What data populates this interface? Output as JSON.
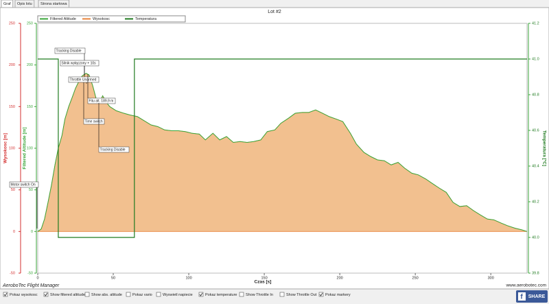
{
  "tabs": [
    "Graf",
    "Opis lotu",
    "Strona startowa"
  ],
  "app_name": "AeroboTec Flight Manager",
  "website": "www.aerobotec.com",
  "share": "SHARE",
  "checkboxes": [
    {
      "label": "Pokaz wysokosc",
      "checked": true
    },
    {
      "label": "Show filtered altitude",
      "checked": true
    },
    {
      "label": "Show abs. altitude",
      "checked": false
    },
    {
      "label": "Pokaz vario",
      "checked": false
    },
    {
      "label": "Wyswietl napiecie",
      "checked": false
    },
    {
      "label": "Pokaz temperature",
      "checked": true
    },
    {
      "label": "Show Throttle In",
      "checked": false
    },
    {
      "label": "Show Throttle Out",
      "checked": false
    },
    {
      "label": "Pokaz markery",
      "checked": true
    }
  ],
  "chart_data": {
    "type": "line",
    "title": "Lot #2",
    "x_label": "Czas [s]",
    "y_label": "Wysokosc [m]",
    "y_label_filtered": "Filtered Altitude [m]",
    "y2_label": "Temperatura [°C]",
    "xlim": [
      0,
      324
    ],
    "xticks": [
      0,
      50,
      100,
      150,
      200,
      250,
      300
    ],
    "ylim": [
      -50,
      250
    ],
    "yticks": [
      -50,
      0,
      50,
      100,
      150,
      200,
      250
    ],
    "y2lim": [
      39.8,
      41.2
    ],
    "y2ticks": [
      {
        "value": 39.8,
        "label": "39.8"
      },
      {
        "value": 40,
        "label": "40.0"
      },
      {
        "value": 40.2,
        "label": "40.2"
      },
      {
        "value": 40.4,
        "label": "40.4"
      },
      {
        "value": 40.6,
        "label": "40.6"
      },
      {
        "value": 40.8,
        "label": "40.8"
      },
      {
        "value": 41,
        "label": "41.0"
      },
      {
        "value": 41.2,
        "label": "41.2"
      }
    ],
    "x": [
      0,
      2.3,
      4.5,
      6.8,
      9,
      11.4,
      13.6,
      16,
      18,
      20.5,
      23,
      25,
      27.7,
      29.5,
      32,
      34,
      36.4,
      38.6,
      41,
      43,
      45.5,
      47.7,
      52,
      57,
      61,
      66,
      70.5,
      75,
      79.5,
      84,
      88.6,
      93,
      97.7,
      102,
      107,
      111,
      116,
      120.5,
      125,
      129.5,
      134,
      138.6,
      143,
      147.7,
      152,
      157,
      161,
      166,
      170.5,
      175,
      179.5,
      184,
      188.6,
      193,
      197.7,
      202,
      207,
      211,
      216,
      220.5,
      225,
      229.5,
      234,
      238.6,
      243,
      247.7,
      252,
      257,
      261,
      266,
      270.5,
      275,
      279.5,
      284,
      288.6,
      293,
      297.7,
      302,
      307,
      311,
      316,
      320.5,
      324
    ],
    "series": [
      {
        "name": "Filtered Altitude",
        "color": "#3aa63a",
        "values": [
          0,
          3,
          15,
          35,
          55,
          80,
          100,
          115,
          135,
          150,
          162,
          172,
          182,
          187,
          190,
          188,
          175,
          160,
          155,
          163,
          155,
          150,
          145,
          142,
          140,
          138,
          133,
          128,
          126,
          122,
          121,
          121,
          120,
          118,
          117,
          110,
          118,
          110,
          114,
          107,
          108,
          107,
          108,
          110,
          120,
          122,
          130,
          136,
          142,
          143,
          143,
          146,
          142,
          138,
          135,
          132,
          118,
          105,
          95,
          90,
          86,
          85,
          80,
          83,
          76,
          70,
          68,
          63,
          58,
          52,
          47,
          35,
          30,
          31,
          25,
          20,
          15,
          14,
          10,
          7,
          4,
          2,
          0
        ]
      },
      {
        "name": "Wysokosc",
        "color": "#e8823a",
        "fill": "#f2c08f",
        "values": [
          0,
          3,
          15,
          35,
          55,
          80,
          100,
          115,
          135,
          150,
          162,
          172,
          182,
          187,
          190,
          188,
          175,
          160,
          155,
          163,
          155,
          150,
          145,
          142,
          140,
          138,
          133,
          128,
          126,
          122,
          121,
          121,
          120,
          118,
          117,
          110,
          118,
          110,
          114,
          107,
          108,
          107,
          108,
          110,
          120,
          122,
          130,
          136,
          142,
          143,
          143,
          146,
          142,
          138,
          135,
          132,
          118,
          105,
          95,
          90,
          86,
          85,
          80,
          83,
          76,
          70,
          68,
          63,
          58,
          52,
          47,
          35,
          30,
          31,
          25,
          20,
          15,
          14,
          10,
          7,
          4,
          2,
          0
        ]
      },
      {
        "name": "Temperatura",
        "color": "#1f7a1f",
        "axis": "y2",
        "x": [
          0,
          13.6,
          13.6,
          64,
          64,
          324
        ],
        "values": [
          41,
          41,
          40,
          40,
          41,
          41
        ]
      }
    ],
    "annotations": [
      "Motor switch On",
      "Tracking Disable",
      "Silnik wyłączony + 10s",
      "Throttle Unarmed",
      "Fitu alt. 189,9 m",
      "Time switch",
      "Tracking Disable"
    ]
  }
}
